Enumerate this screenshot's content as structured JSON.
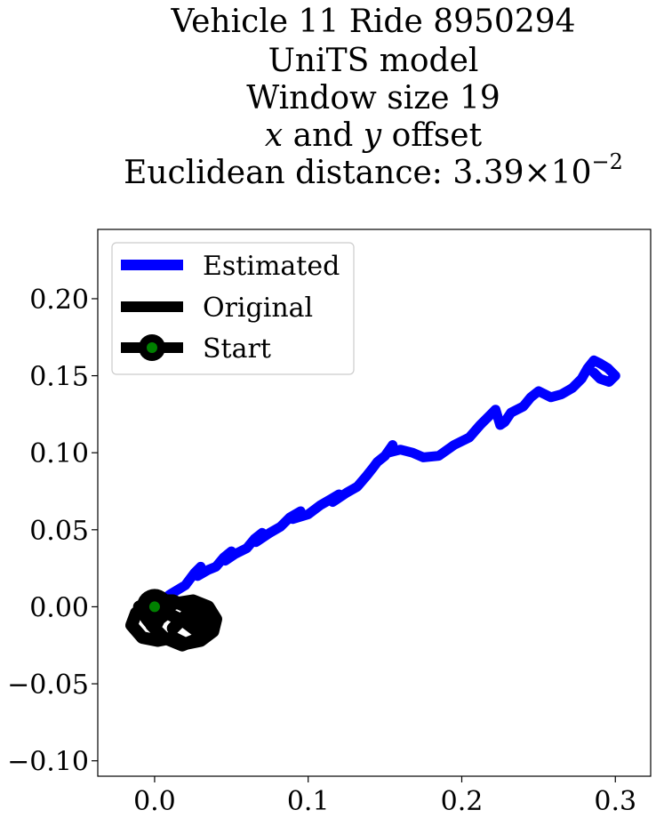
{
  "chart_data": {
    "type": "line",
    "title_lines": [
      "Vehicle 11 Ride 8950294",
      "UniTS model",
      "Window size 19",
      "x and y offset"
    ],
    "title_italic_line": {
      "x_var": "x",
      "connector": " and ",
      "y_var": "y",
      "suffix": " offset"
    },
    "title_distance": {
      "label": "Euclidean distance: ",
      "mantissa": "3.39",
      "times": "×",
      "base": "10",
      "exponent": "−2"
    },
    "xlabel": "",
    "ylabel": "",
    "xlim": [
      -0.037,
      0.323
    ],
    "ylim": [
      -0.11,
      0.245
    ],
    "xticks": [
      0.0,
      0.1,
      0.2,
      0.3
    ],
    "xtick_labels": [
      "0.0",
      "0.1",
      "0.2",
      "0.3"
    ],
    "yticks": [
      -0.1,
      -0.05,
      0.0,
      0.05,
      0.1,
      0.15,
      0.2
    ],
    "ytick_labels": [
      "−0.10",
      "−0.05",
      "0.00",
      "0.05",
      "0.10",
      "0.15",
      "0.20"
    ],
    "grid": false,
    "legend_position": "top-left",
    "legend": [
      {
        "label": "Estimated",
        "color": "#0000ff"
      },
      {
        "label": "Original",
        "color": "#000000"
      },
      {
        "label": "Start",
        "color": "#000000",
        "marker_color": "#008000"
      }
    ],
    "series": [
      {
        "name": "Estimated",
        "color": "#0000ff",
        "points": [
          [
            0.0,
            0.0
          ],
          [
            0.01,
            0.008
          ],
          [
            0.02,
            0.014
          ],
          [
            0.026,
            0.022
          ],
          [
            0.03,
            0.026
          ],
          [
            0.028,
            0.02
          ],
          [
            0.035,
            0.024
          ],
          [
            0.04,
            0.026
          ],
          [
            0.045,
            0.032
          ],
          [
            0.05,
            0.036
          ],
          [
            0.046,
            0.03
          ],
          [
            0.052,
            0.034
          ],
          [
            0.06,
            0.038
          ],
          [
            0.065,
            0.044
          ],
          [
            0.07,
            0.048
          ],
          [
            0.066,
            0.042
          ],
          [
            0.075,
            0.048
          ],
          [
            0.082,
            0.052
          ],
          [
            0.088,
            0.058
          ],
          [
            0.095,
            0.062
          ],
          [
            0.09,
            0.057
          ],
          [
            0.1,
            0.06
          ],
          [
            0.108,
            0.066
          ],
          [
            0.115,
            0.07
          ],
          [
            0.12,
            0.073
          ],
          [
            0.116,
            0.068
          ],
          [
            0.125,
            0.074
          ],
          [
            0.132,
            0.078
          ],
          [
            0.138,
            0.085
          ],
          [
            0.142,
            0.09
          ],
          [
            0.145,
            0.094
          ],
          [
            0.15,
            0.098
          ],
          [
            0.155,
            0.105
          ],
          [
            0.152,
            0.1
          ],
          [
            0.16,
            0.102
          ],
          [
            0.168,
            0.1
          ],
          [
            0.175,
            0.097
          ],
          [
            0.185,
            0.098
          ],
          [
            0.195,
            0.105
          ],
          [
            0.205,
            0.11
          ],
          [
            0.212,
            0.118
          ],
          [
            0.218,
            0.124
          ],
          [
            0.222,
            0.128
          ],
          [
            0.225,
            0.118
          ],
          [
            0.228,
            0.12
          ],
          [
            0.232,
            0.126
          ],
          [
            0.24,
            0.13
          ],
          [
            0.245,
            0.136
          ],
          [
            0.25,
            0.14
          ],
          [
            0.258,
            0.136
          ],
          [
            0.265,
            0.138
          ],
          [
            0.272,
            0.142
          ],
          [
            0.278,
            0.148
          ],
          [
            0.282,
            0.155
          ],
          [
            0.286,
            0.16
          ],
          [
            0.29,
            0.158
          ],
          [
            0.295,
            0.155
          ],
          [
            0.3,
            0.15
          ],
          [
            0.296,
            0.146
          ],
          [
            0.29,
            0.148
          ],
          [
            0.286,
            0.152
          ]
        ]
      },
      {
        "name": "Original",
        "color": "#000000",
        "points": [
          [
            0.0,
            0.0
          ],
          [
            -0.012,
            -0.004
          ],
          [
            -0.015,
            -0.012
          ],
          [
            -0.008,
            -0.02
          ],
          [
            0.002,
            -0.022
          ],
          [
            0.012,
            -0.02
          ],
          [
            0.02,
            -0.024
          ],
          [
            0.03,
            -0.022
          ],
          [
            0.038,
            -0.016
          ],
          [
            0.04,
            -0.008
          ],
          [
            0.035,
            0.0
          ],
          [
            0.025,
            0.004
          ],
          [
            0.012,
            0.002
          ],
          [
            0.004,
            -0.006
          ],
          [
            0.0,
            -0.014
          ],
          [
            -0.005,
            -0.008
          ],
          [
            -0.01,
            0.0
          ],
          [
            0.0,
            0.004
          ],
          [
            0.012,
            0.004
          ],
          [
            0.025,
            -0.002
          ],
          [
            0.034,
            -0.01
          ],
          [
            0.03,
            -0.02
          ],
          [
            0.018,
            -0.025
          ],
          [
            0.006,
            -0.02
          ],
          [
            -0.002,
            -0.012
          ],
          [
            0.008,
            -0.004
          ],
          [
            0.02,
            -0.01
          ],
          [
            0.028,
            -0.016
          ],
          [
            0.02,
            -0.006
          ],
          [
            0.012,
            -0.014
          ]
        ]
      }
    ],
    "start_point": [
      0.0,
      0.0
    ]
  }
}
